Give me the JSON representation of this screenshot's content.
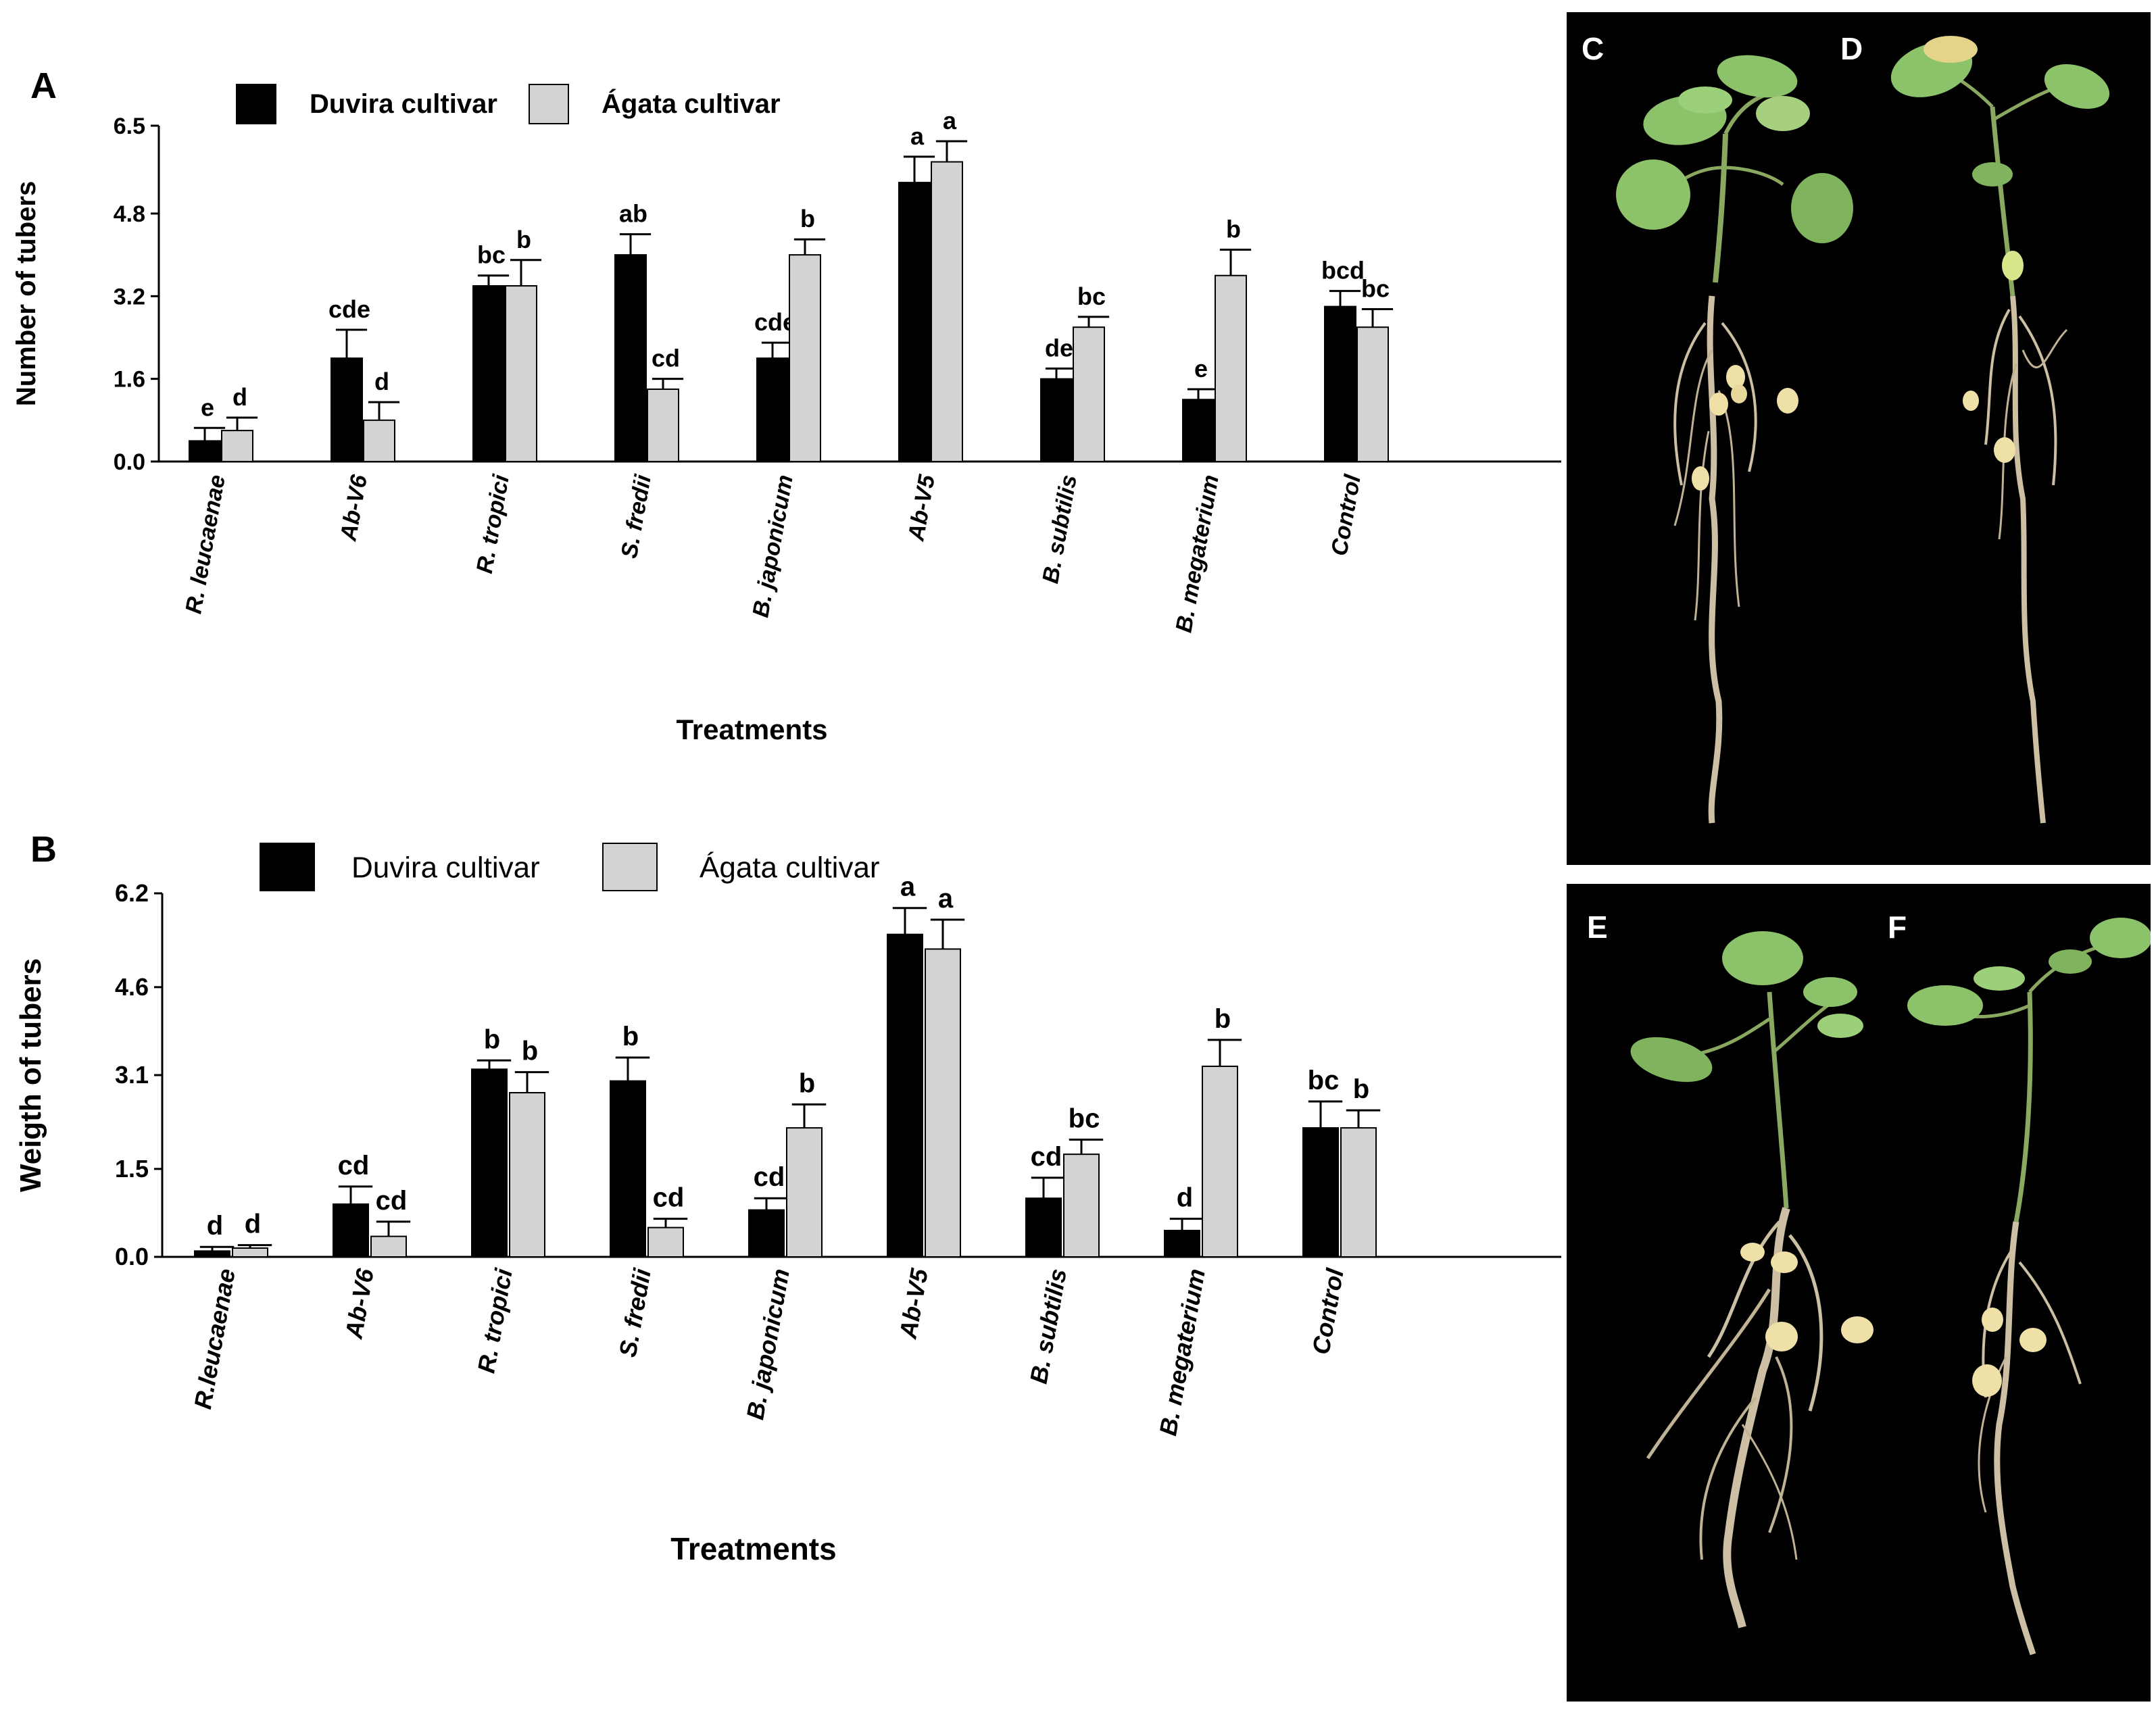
{
  "charts": [
    {
      "panel_label": "A",
      "legend": {
        "items": [
          "Duvira cultivar",
          "Ágata cultivar"
        ]
      },
      "xlabel": "Treatments",
      "ylabel": "Number of tubers",
      "yticks": [
        "6.5",
        "4.8",
        "3.2",
        "1.6",
        "0.0"
      ]
    },
    {
      "panel_label": "B",
      "legend": {
        "items": [
          "Duvira cultivar",
          "Ágata cultivar"
        ]
      },
      "xlabel": "Treatments",
      "ylabel": "Weigth of tubers",
      "yticks": [
        "6.2",
        "4.6",
        "3.1",
        "1.5",
        "0.0"
      ]
    }
  ],
  "chart_data": [
    {
      "type": "bar",
      "title": "",
      "xlabel": "Treatments",
      "ylabel": "Number of tubers",
      "ylim": [
        0,
        6.5
      ],
      "yticks": [
        0.0,
        1.6,
        3.2,
        4.8,
        6.5
      ],
      "categories": [
        "R. leucaenae",
        "Ab-V6",
        "R. tropici",
        "S. fredii",
        "B. japonicum",
        "Ab-V5",
        "B. subtilis",
        "B. megaterium",
        "Control"
      ],
      "series": [
        {
          "name": "Duvira cultivar",
          "color": "#000000",
          "values": [
            0.4,
            2.0,
            3.4,
            4.0,
            2.0,
            5.4,
            1.6,
            1.2,
            3.0
          ],
          "errors": [
            0.25,
            0.55,
            0.2,
            0.4,
            0.3,
            0.5,
            0.2,
            0.2,
            0.3
          ],
          "letters": [
            "e",
            "cde",
            "bc",
            "ab",
            "cde",
            "a",
            "de",
            "e",
            "bcd"
          ]
        },
        {
          "name": "Ágata cultivar",
          "color": "#d3d3d3",
          "values": [
            0.6,
            0.8,
            3.4,
            1.4,
            4.0,
            5.8,
            2.6,
            3.6,
            2.6
          ],
          "errors": [
            0.25,
            0.35,
            0.5,
            0.2,
            0.3,
            0.4,
            0.2,
            0.5,
            0.35
          ],
          "letters": [
            "d",
            "d",
            "b",
            "cd",
            "b",
            "a",
            "bc",
            "b",
            "bc"
          ]
        }
      ],
      "grid": false,
      "legend_position": "top"
    },
    {
      "type": "bar",
      "title": "",
      "xlabel": "Treatments",
      "ylabel": "Weigth of tubers",
      "ylim": [
        0,
        6.2
      ],
      "yticks": [
        0.0,
        1.5,
        3.1,
        4.6,
        6.2
      ],
      "categories": [
        "R.leucaenae",
        "Ab-V6",
        "R. tropici",
        "S. fredii",
        "B. japonicum",
        "Ab-V5",
        "B. subtilis",
        "B. megaterium",
        "Control"
      ],
      "series": [
        {
          "name": "Duvira cultivar",
          "color": "#000000",
          "values": [
            0.1,
            0.9,
            3.2,
            3.0,
            0.8,
            5.5,
            1.0,
            0.45,
            2.2
          ],
          "errors": [
            0.07,
            0.3,
            0.15,
            0.4,
            0.2,
            0.45,
            0.35,
            0.2,
            0.45
          ],
          "letters": [
            "d",
            "cd",
            "b",
            "b",
            "cd",
            "a",
            "cd",
            "d",
            "bc"
          ]
        },
        {
          "name": "Ágata cultivar",
          "color": "#d3d3d3",
          "values": [
            0.15,
            0.35,
            2.8,
            0.5,
            2.2,
            5.25,
            1.75,
            3.25,
            2.2
          ],
          "errors": [
            0.05,
            0.25,
            0.35,
            0.15,
            0.4,
            0.5,
            0.25,
            0.45,
            0.3
          ],
          "letters": [
            "d",
            "cd",
            "b",
            "cd",
            "b",
            "a",
            "bc",
            "b",
            "b"
          ]
        }
      ],
      "grid": false,
      "legend_position": "top"
    }
  ],
  "photos": [
    {
      "label": "C",
      "description": "potato-plant"
    },
    {
      "label": "D",
      "description": "potato-plant"
    },
    {
      "label": "E",
      "description": "potato-plant"
    },
    {
      "label": "F",
      "description": "potato-plant"
    }
  ]
}
